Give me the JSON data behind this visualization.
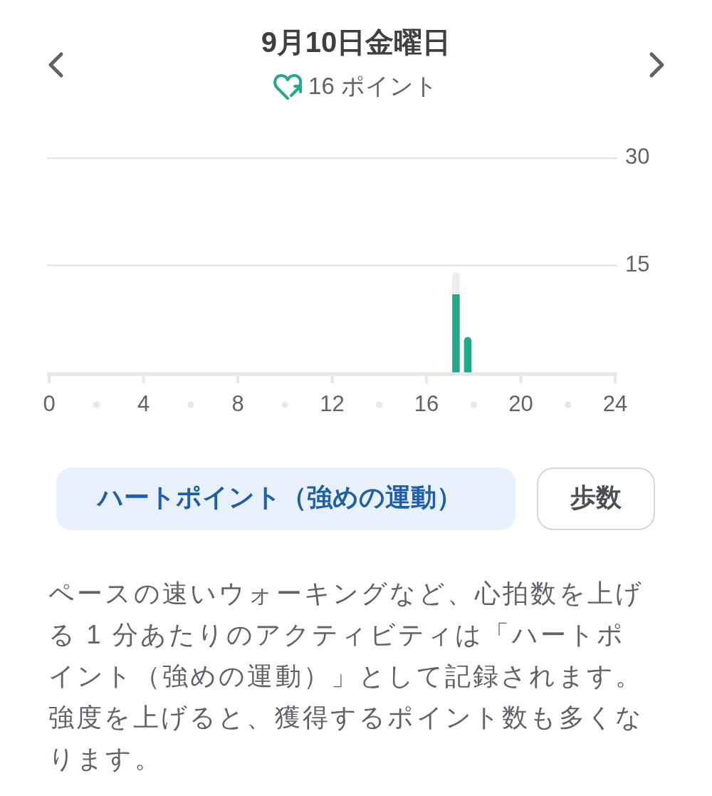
{
  "chart_data": {
    "type": "bar",
    "title": "9月10日金曜日",
    "subtitle": "16 ポイント",
    "x": [
      17.25,
      17.75
    ],
    "stacked": true,
    "series": [
      {
        "color": "#22a98b",
        "values": [
          11,
          5
        ]
      },
      {
        "color": "#ededf0",
        "values": [
          3,
          null
        ]
      }
    ],
    "xlim": [
      0,
      24
    ],
    "xticks": [
      0,
      4,
      8,
      12,
      16,
      20,
      24
    ],
    "ylim": [
      0,
      30
    ],
    "yticks": [
      15,
      30
    ],
    "grid": "y",
    "annotations": [
      "ハートポイント（強めの運動）",
      "歩数",
      "ペースの速いウォーキングなど、心拍数を上げる 1 分あたりのアクティビティは「ハートポイント（強めの運動）」として記録されます。強度を上げると、獲得するポイント数も多くなります。"
    ]
  }
}
